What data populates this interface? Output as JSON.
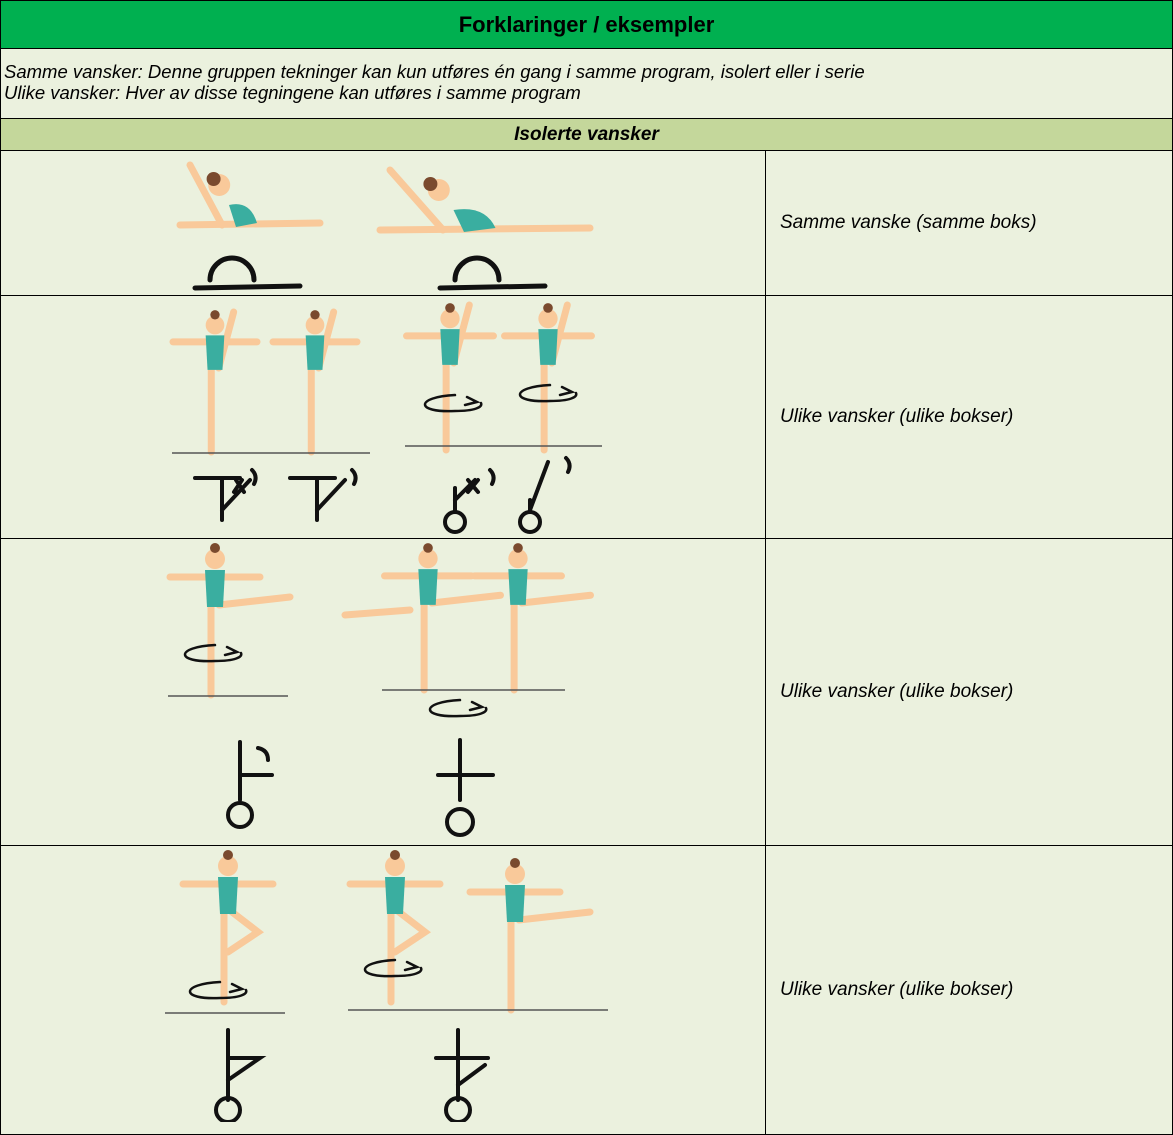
{
  "header": {
    "title": "Forklaringer / eksempler"
  },
  "intro": {
    "lines": [
      "Samme vansker: Denne gruppen tekninger kan kun utføres én gang i samme program, isolert eller i serie",
      "Ulike vansker: Hver av disse tegningene kan utføres i samme program"
    ]
  },
  "section": {
    "title": "Isolerte vansker"
  },
  "rows": [
    {
      "description": "Samme vanske (samme boks)"
    },
    {
      "description": "Ulike vansker (ulike bokser)"
    },
    {
      "description": "Ulike vansker (ulike bokser)"
    },
    {
      "description": "Ulike vansker (ulike bokser)"
    }
  ]
}
